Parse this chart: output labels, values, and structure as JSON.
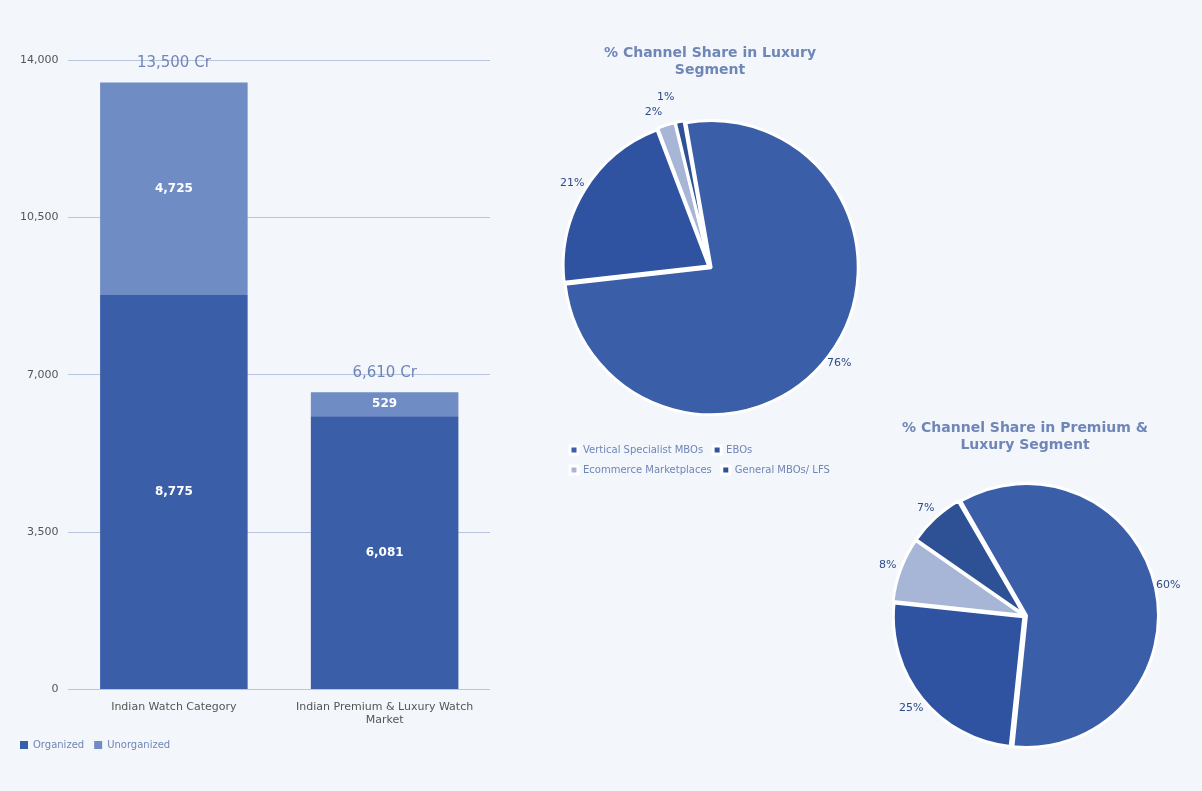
{
  "chart_data": [
    {
      "type": "bar",
      "stacked": true,
      "categories": [
        "Indian Watch Category",
        "Indian Premium & Luxury Watch Market"
      ],
      "series": [
        {
          "name": "Organized",
          "color": "#3a5ea8",
          "values": [
            8775,
            6081
          ],
          "value_labels": [
            "8,775",
            "6,081"
          ]
        },
        {
          "name": "Unorganized",
          "color": "#6f8cc4",
          "values": [
            4725,
            529
          ],
          "value_labels": [
            "4,725",
            "529"
          ]
        }
      ],
      "totals": [
        "13,500 Cr",
        "6,610 Cr"
      ],
      "ylim": [
        0,
        14000
      ],
      "yticks": [
        0,
        {
          "value": 3500,
          "label": "3,500"
        },
        {
          "value": 7000,
          "label": "7,000"
        },
        {
          "value": 10500,
          "label": "10,500"
        },
        {
          "value": 14000,
          "label": "14,000"
        }
      ],
      "grid": "y",
      "legend": "bottom left"
    },
    {
      "type": "pie",
      "title": "% Channel Share in Luxury Segment",
      "categories": [
        "Vertical Specialist MBOs",
        "EBOs",
        "Ecommerce Marketplaces",
        "General MBOs/ LFS"
      ],
      "values": [
        76,
        21,
        2,
        1
      ],
      "value_labels": [
        "76%",
        "21%",
        "2%",
        "1%"
      ],
      "colors": [
        "#3a5ea8",
        "#2f53a0",
        "#a7b6d6",
        "#2d5194"
      ],
      "legend": "bottom"
    },
    {
      "type": "pie",
      "title": "% Channel Share in Premium & Luxury Segment",
      "categories": [
        null,
        null,
        null,
        null
      ],
      "values": [
        60,
        25,
        8,
        7
      ],
      "value_labels": [
        "60%",
        "25%",
        "8%",
        "7%"
      ],
      "colors": [
        "#3a5ea8",
        "#2f53a0",
        "#a7b6d6",
        "#2d5194"
      ]
    }
  ]
}
